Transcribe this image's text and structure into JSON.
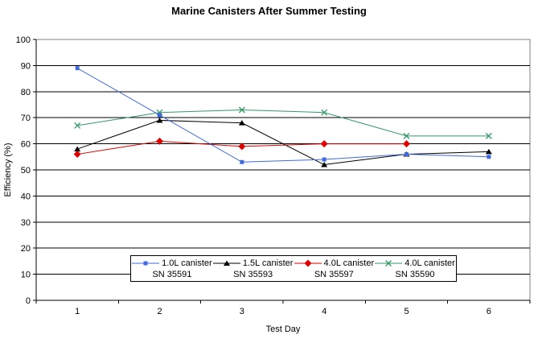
{
  "chart_data": {
    "type": "line",
    "title": "Marine Canisters After Summer Testing",
    "xlabel": "Test Day",
    "ylabel": "Efficiency (%)",
    "categories": [
      1,
      2,
      3,
      4,
      5,
      6
    ],
    "ylim": [
      0,
      100
    ],
    "ytick_step": 10,
    "yticks": [
      0,
      10,
      20,
      30,
      40,
      50,
      60,
      70,
      80,
      90,
      100
    ],
    "grid": "horizontal black gridlines every 10, gray plot border",
    "legend_position": "inside-bottom-center",
    "colors": {
      "plot_border": "#808080",
      "gridline": "#000000",
      "axis": "#000000",
      "text": "#000000",
      "background": "#ffffff"
    },
    "series": [
      {
        "name": "1.0L canister",
        "sn": "SN 35591",
        "color": "#4169E1",
        "marker": "square",
        "values": [
          89,
          71,
          53,
          54,
          56,
          55
        ]
      },
      {
        "name": "1.5L canister",
        "sn": "SN 35593",
        "color": "#000000",
        "marker": "triangle",
        "values": [
          58,
          69,
          68,
          52,
          56,
          57
        ]
      },
      {
        "name": "4.0L canister",
        "sn": "SN 35597",
        "color": "#E00000",
        "marker": "diamond",
        "values": [
          56,
          61,
          59,
          60,
          60,
          null
        ]
      },
      {
        "name": "4.0L canister",
        "sn": "SN 35590",
        "color": "#339966",
        "marker": "x",
        "values": [
          67,
          72,
          73,
          72,
          63,
          63
        ]
      }
    ]
  }
}
